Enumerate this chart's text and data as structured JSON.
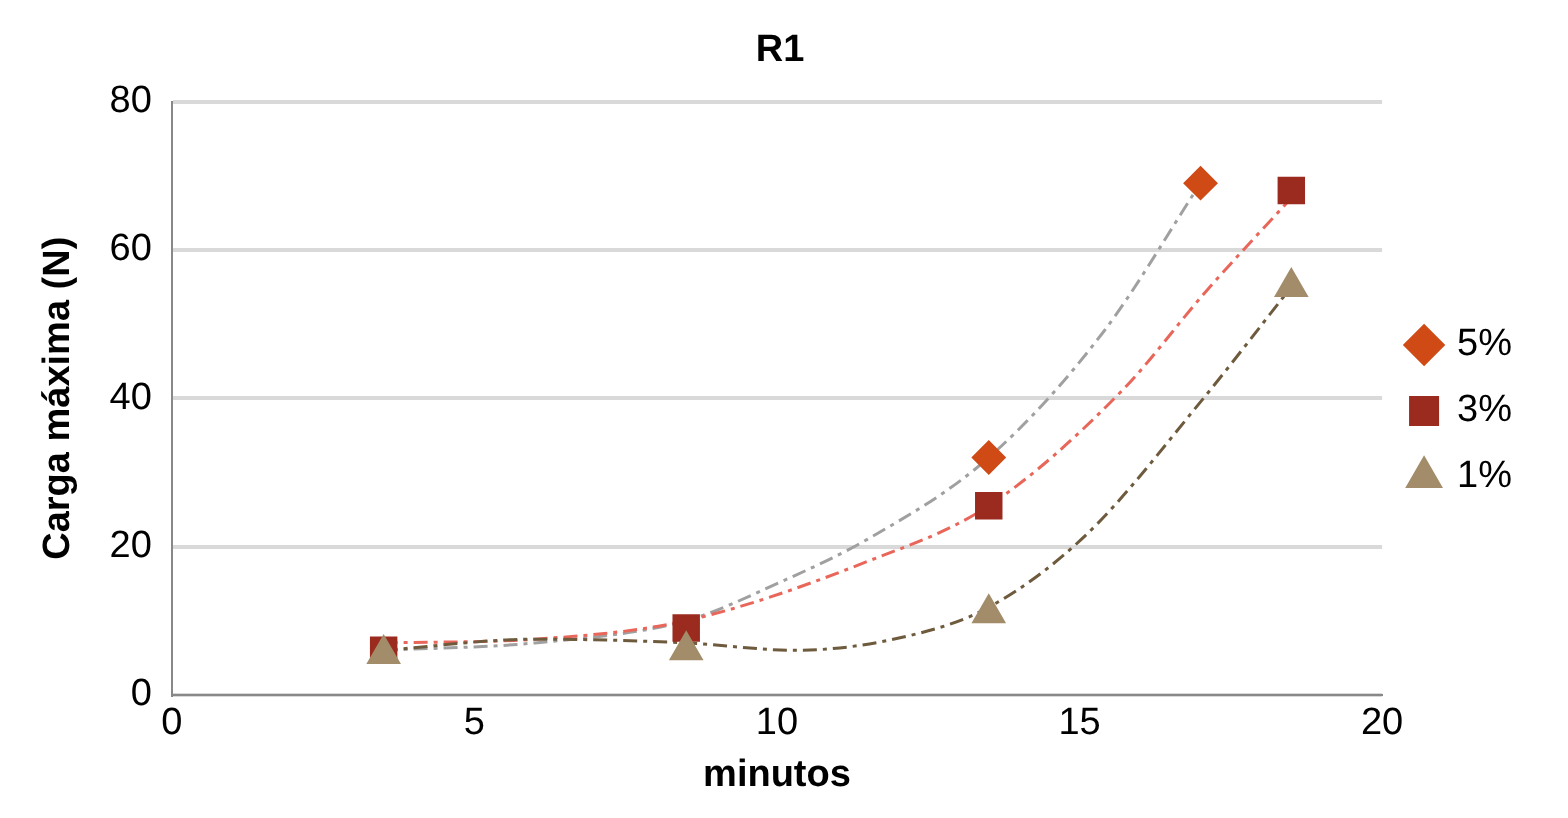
{
  "chart_data": {
    "type": "scatter",
    "title": "R1",
    "xlabel": "minutos",
    "ylabel": "Carga máxima (N)",
    "xlim": [
      0,
      20
    ],
    "xticks": [
      0,
      5,
      10,
      15,
      20
    ],
    "ylim": [
      0,
      80
    ],
    "yticks": [
      0,
      20,
      40,
      60,
      80
    ],
    "grid": "y",
    "legend": "right",
    "series": [
      {
        "name": "5%",
        "color": "#d04a15",
        "marker": "diamond",
        "x": [
          13.5,
          17
        ],
        "values": [
          32,
          69
        ]
      },
      {
        "name": "3%",
        "color": "#9b2a1f",
        "marker": "square",
        "x": [
          3.5,
          8.5,
          13.5,
          18.5
        ],
        "values": [
          6,
          9,
          25.5,
          68
        ]
      },
      {
        "name": "1%",
        "color": "#a28c69",
        "marker": "triangle",
        "x": [
          3.5,
          8.5,
          13.5,
          18.5
        ],
        "values": [
          5.5,
          6,
          11,
          55
        ]
      },
      {
        "type": "line",
        "color": "#a0a0a0",
        "marker": "none",
        "line_style": "dashed",
        "x": [
          3.5,
          6,
          8.5,
          10,
          11.5,
          13.5,
          15.4,
          17
        ],
        "values": [
          6,
          7,
          10,
          15,
          21,
          32,
          49,
          69
        ]
      },
      {
        "type": "line",
        "color": "#e8665a",
        "marker": "none",
        "line_style": "dashed",
        "x": [
          3.5,
          6,
          8.5,
          11.5,
          13.5,
          15.7,
          17.1,
          18.5
        ],
        "values": [
          7,
          7.5,
          10,
          18,
          25.5,
          41,
          54.5,
          67
        ]
      },
      {
        "type": "line",
        "color": "#6e5a3c",
        "marker": "none",
        "line_style": "dashed",
        "x": [
          3.5,
          6,
          8.5,
          10.3,
          12.2,
          13.5,
          15.1,
          17,
          18.5
        ],
        "values": [
          6,
          7.5,
          7,
          6,
          8,
          11.8,
          21.5,
          39.5,
          55
        ]
      }
    ]
  }
}
